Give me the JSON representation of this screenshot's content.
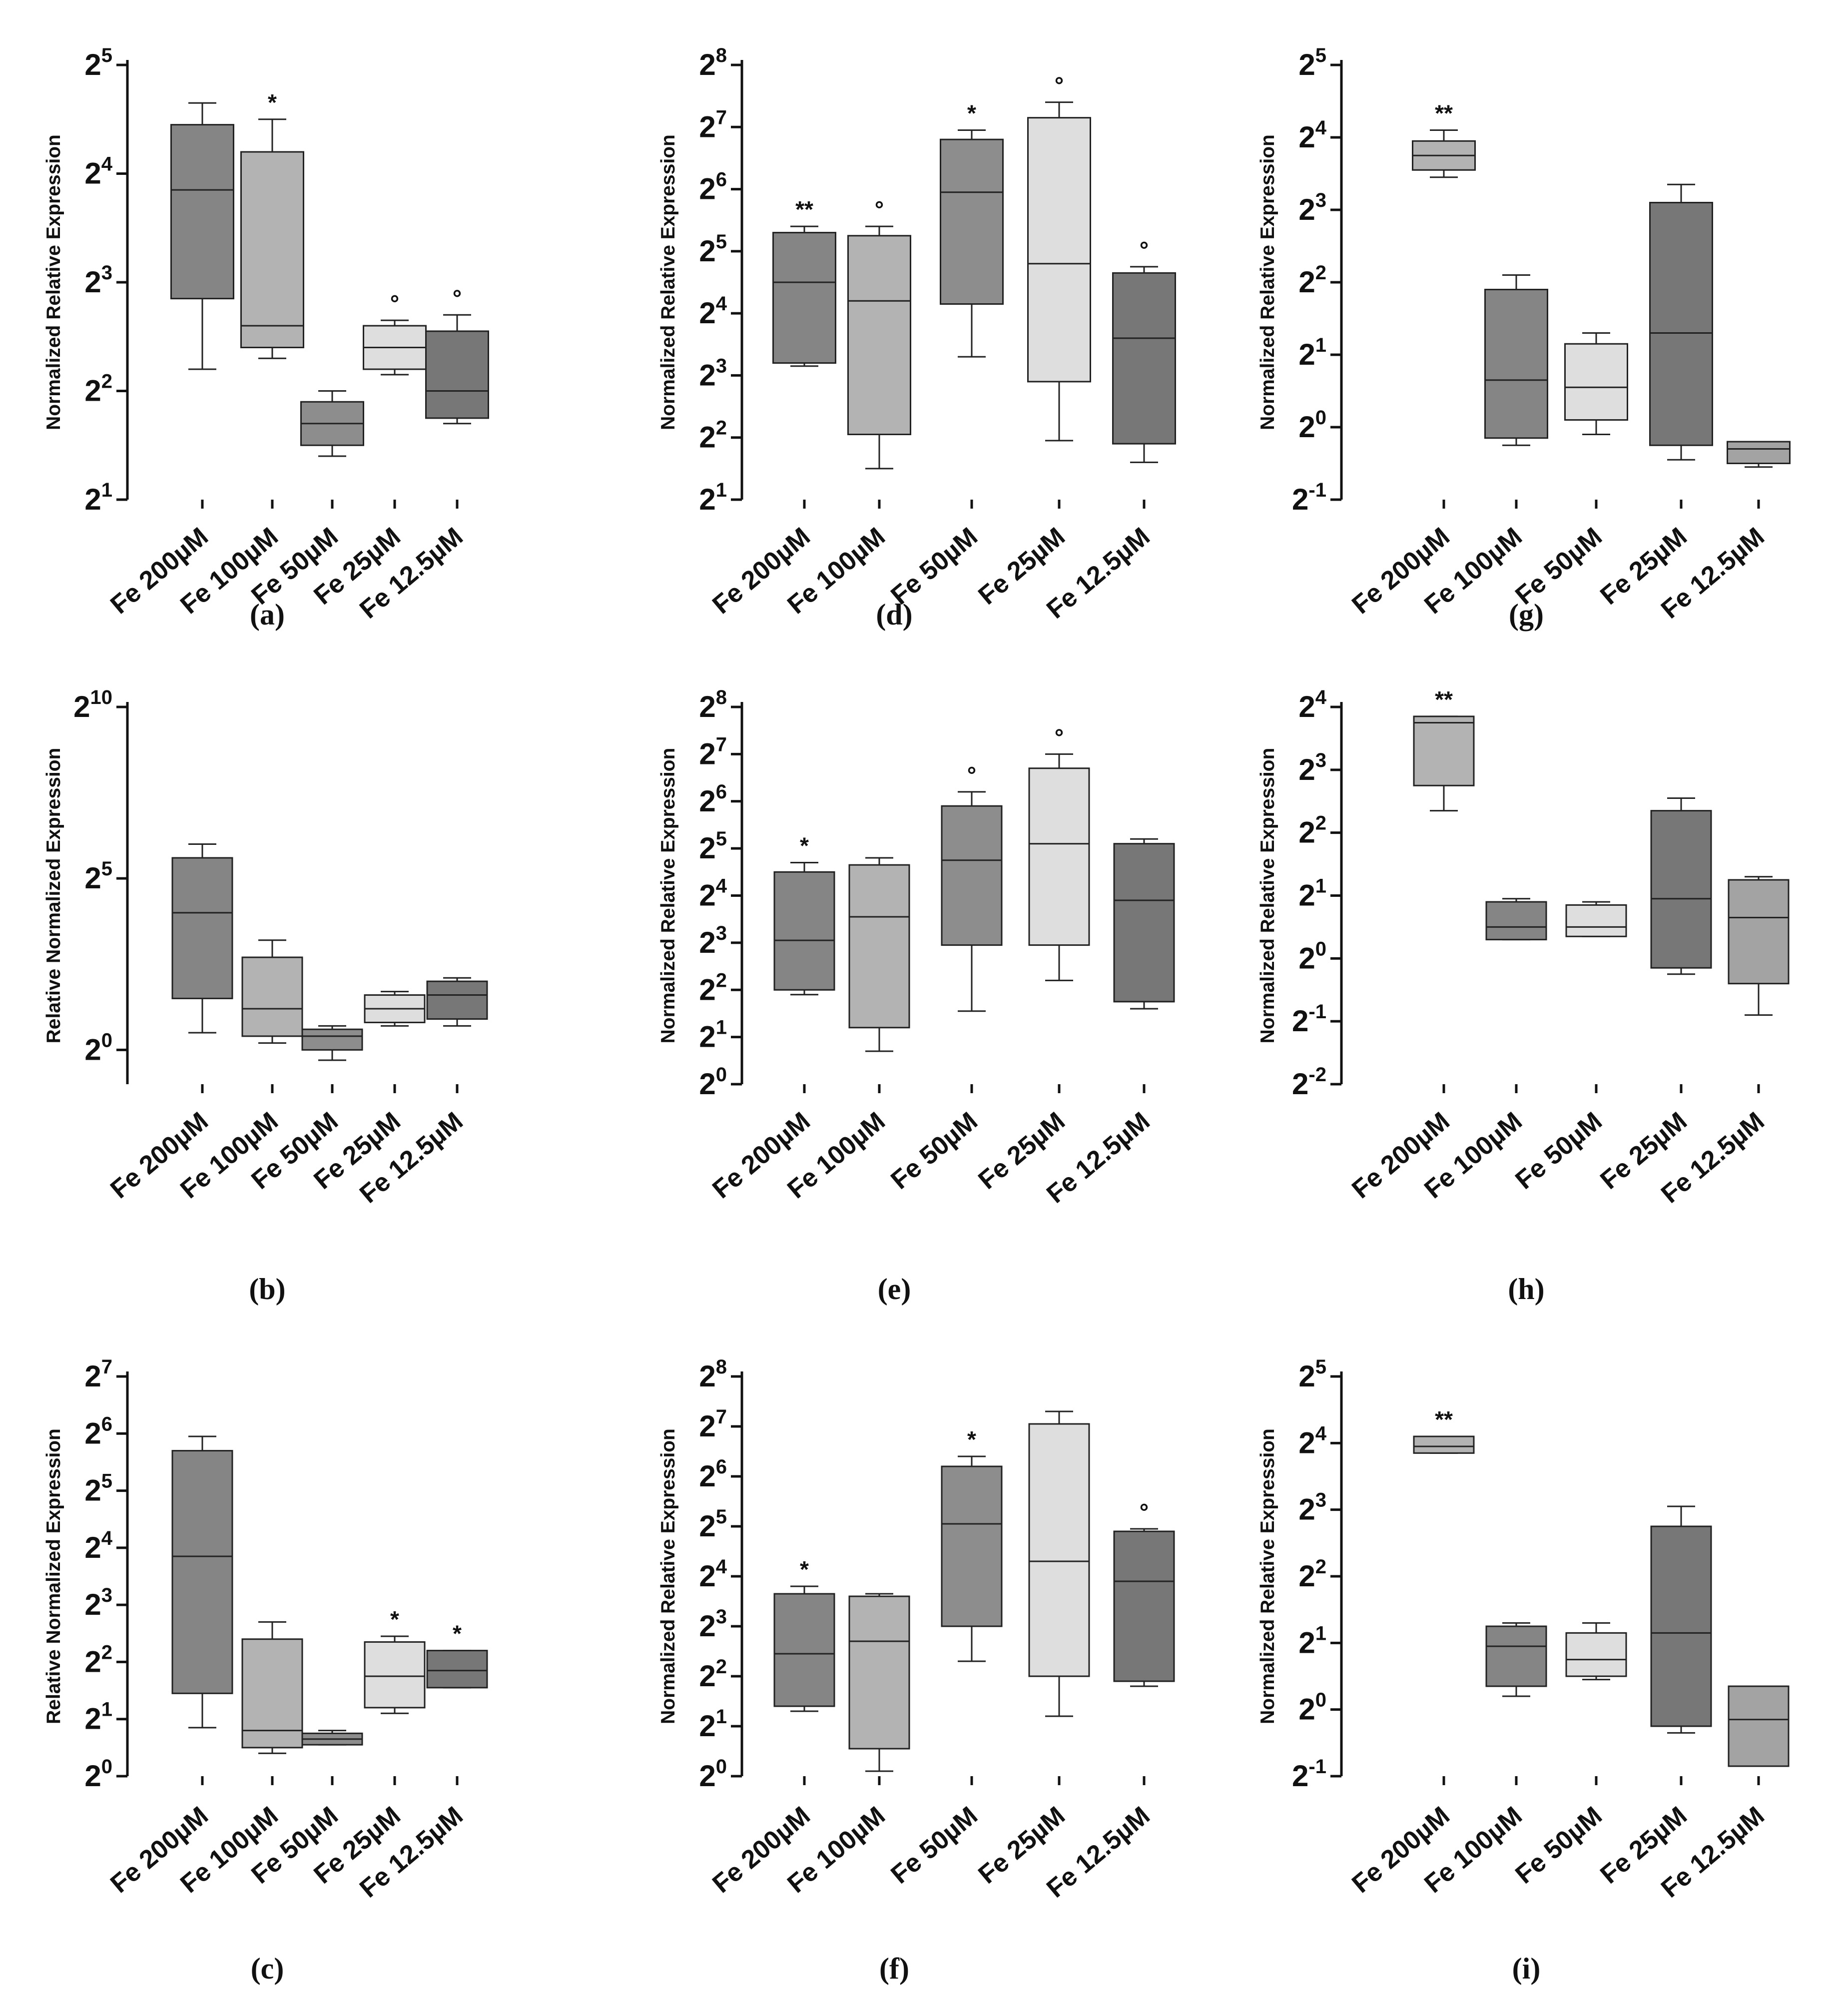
{
  "chart_data": [
    {
      "type": "box",
      "label": "(a)",
      "ylabel": "Normalized Relative Expression",
      "ylim": [
        1,
        5
      ],
      "yticks": [
        1,
        2,
        3,
        4,
        5
      ],
      "categories": [
        "Fe 200µM",
        "Fe 100µM",
        "Fe 50µM",
        "Fe 25µM",
        "Fe 12.5µM"
      ],
      "fills": [
        "#858585",
        "#b3b3b3",
        "#8d8d8d",
        "#dedede",
        "#777777"
      ],
      "boxes": [
        {
          "min": 2.2,
          "q1": 2.85,
          "median": 3.85,
          "q3": 4.45,
          "max": 4.65,
          "sig": ""
        },
        {
          "min": 2.3,
          "q1": 2.4,
          "median": 2.6,
          "q3": 4.2,
          "max": 4.5,
          "sig": "*"
        },
        {
          "min": 1.4,
          "q1": 1.5,
          "median": 1.7,
          "q3": 1.9,
          "max": 2.0,
          "sig": ""
        },
        {
          "min": 2.15,
          "q1": 2.2,
          "median": 2.4,
          "q3": 2.6,
          "max": 2.65,
          "sig": "°"
        },
        {
          "min": 1.7,
          "q1": 1.75,
          "median": 2.0,
          "q3": 2.55,
          "max": 2.7,
          "sig": "°"
        }
      ]
    },
    {
      "type": "box",
      "label": "(d)",
      "ylabel": "Normalized Relative Expression",
      "ylim": [
        1,
        8
      ],
      "yticks": [
        1,
        2,
        3,
        4,
        5,
        6,
        7,
        8
      ],
      "categories": [
        "Fe 200µM",
        "Fe 100µM",
        "Fe 50µM",
        "Fe 25µM",
        "Fe 12.5µM"
      ],
      "fills": [
        "#858585",
        "#b3b3b3",
        "#8d8d8d",
        "#dedede",
        "#777777"
      ],
      "boxes": [
        {
          "min": 3.15,
          "q1": 3.2,
          "median": 4.5,
          "q3": 5.3,
          "max": 5.4,
          "sig": "**"
        },
        {
          "min": 1.5,
          "q1": 2.05,
          "median": 4.2,
          "q3": 5.25,
          "max": 5.4,
          "sig": "°"
        },
        {
          "min": 3.3,
          "q1": 4.15,
          "median": 5.95,
          "q3": 6.8,
          "max": 6.95,
          "sig": "*"
        },
        {
          "min": 1.95,
          "q1": 2.9,
          "median": 4.8,
          "q3": 7.15,
          "max": 7.4,
          "sig": "°"
        },
        {
          "min": 1.6,
          "q1": 1.9,
          "median": 3.6,
          "q3": 4.65,
          "max": 4.75,
          "sig": "°"
        }
      ]
    },
    {
      "type": "box",
      "label": "(g)",
      "ylabel": "Normalized Relative Expression",
      "ylim": [
        -1,
        5
      ],
      "yticks": [
        -1,
        0,
        1,
        2,
        3,
        4,
        5
      ],
      "categories": [
        "Fe 200µM",
        "Fe 100µM",
        "Fe 50µM",
        "Fe 25µM",
        "Fe 12.5µM"
      ],
      "fills": [
        "#b3b3b3",
        "#858585",
        "#dedede",
        "#777777",
        "#a3a3a3"
      ],
      "boxes": [
        {
          "min": 3.45,
          "q1": 3.55,
          "median": 3.75,
          "q3": 3.95,
          "max": 4.1,
          "sig": "**"
        },
        {
          "min": -0.25,
          "q1": -0.15,
          "median": 0.65,
          "q3": 1.9,
          "max": 2.1,
          "sig": ""
        },
        {
          "min": -0.1,
          "q1": 0.1,
          "median": 0.55,
          "q3": 1.15,
          "max": 1.3,
          "sig": ""
        },
        {
          "min": -0.45,
          "q1": -0.25,
          "median": 1.3,
          "q3": 3.1,
          "max": 3.35,
          "sig": ""
        },
        {
          "min": -0.55,
          "q1": -0.5,
          "median": -0.3,
          "q3": -0.2,
          "max": -0.2,
          "sig": ""
        }
      ]
    },
    {
      "type": "box",
      "label": "(b)",
      "ylabel": "Relative Normalized Expression",
      "ylim": [
        -1,
        10
      ],
      "yticks": [
        0,
        5,
        10
      ],
      "categories": [
        "Fe 200µM",
        "Fe 100µM",
        "Fe 50µM",
        "Fe 25µM",
        "Fe 12.5µM"
      ],
      "fills": [
        "#858585",
        "#b3b3b3",
        "#8d8d8d",
        "#dedede",
        "#777777"
      ],
      "boxes": [
        {
          "min": 0.5,
          "q1": 1.5,
          "median": 4.0,
          "q3": 5.6,
          "max": 6.0,
          "sig": ""
        },
        {
          "min": 0.2,
          "q1": 0.4,
          "median": 1.2,
          "q3": 2.7,
          "max": 3.2,
          "sig": ""
        },
        {
          "min": -0.3,
          "q1": 0.0,
          "median": 0.4,
          "q3": 0.6,
          "max": 0.7,
          "sig": ""
        },
        {
          "min": 0.7,
          "q1": 0.8,
          "median": 1.2,
          "q3": 1.6,
          "max": 1.7,
          "sig": ""
        },
        {
          "min": 0.7,
          "q1": 0.9,
          "median": 1.6,
          "q3": 2.0,
          "max": 2.1,
          "sig": ""
        }
      ]
    },
    {
      "type": "box",
      "label": "(e)",
      "ylabel": "Normalized Relative Expression",
      "ylim": [
        0,
        8
      ],
      "yticks": [
        0,
        1,
        2,
        3,
        4,
        5,
        6,
        7,
        8
      ],
      "categories": [
        "Fe 200µM",
        "Fe 100µM",
        "Fe 50µM",
        "Fe 25µM",
        "Fe 12.5µM"
      ],
      "fills": [
        "#858585",
        "#b3b3b3",
        "#8d8d8d",
        "#dedede",
        "#777777"
      ],
      "boxes": [
        {
          "min": 1.9,
          "q1": 2.0,
          "median": 3.05,
          "q3": 4.5,
          "max": 4.7,
          "sig": "*"
        },
        {
          "min": 0.7,
          "q1": 1.2,
          "median": 3.55,
          "q3": 4.65,
          "max": 4.8,
          "sig": ""
        },
        {
          "min": 1.55,
          "q1": 2.95,
          "median": 4.75,
          "q3": 5.9,
          "max": 6.2,
          "sig": "°"
        },
        {
          "min": 2.2,
          "q1": 2.95,
          "median": 5.1,
          "q3": 6.7,
          "max": 7.0,
          "sig": "°"
        },
        {
          "min": 1.6,
          "q1": 1.75,
          "median": 3.9,
          "q3": 5.1,
          "max": 5.2,
          "sig": ""
        }
      ]
    },
    {
      "type": "box",
      "label": "(h)",
      "ylabel": "Normalized Relative Expression",
      "ylim": [
        -2,
        4
      ],
      "yticks": [
        -2,
        -1,
        0,
        1,
        2,
        3,
        4
      ],
      "categories": [
        "Fe 200µM",
        "Fe 100µM",
        "Fe 50µM",
        "Fe 25µM",
        "Fe 12.5µM"
      ],
      "fills": [
        "#b3b3b3",
        "#858585",
        "#dedede",
        "#777777",
        "#a3a3a3"
      ],
      "boxes": [
        {
          "min": 2.35,
          "q1": 2.75,
          "median": 3.75,
          "q3": 3.85,
          "max": 3.85,
          "sig": "**"
        },
        {
          "min": 0.3,
          "q1": 0.3,
          "median": 0.5,
          "q3": 0.9,
          "max": 0.95,
          "sig": ""
        },
        {
          "min": 0.35,
          "q1": 0.35,
          "median": 0.5,
          "q3": 0.85,
          "max": 0.9,
          "sig": ""
        },
        {
          "min": -0.25,
          "q1": -0.15,
          "median": 0.95,
          "q3": 2.35,
          "max": 2.55,
          "sig": ""
        },
        {
          "min": -0.9,
          "q1": -0.4,
          "median": 0.65,
          "q3": 1.25,
          "max": 1.3,
          "sig": ""
        }
      ]
    },
    {
      "type": "box",
      "label": "(c)",
      "ylabel": "Relative Normalized Expression",
      "ylim": [
        0,
        7
      ],
      "yticks": [
        0,
        1,
        2,
        3,
        4,
        5,
        6,
        7
      ],
      "categories": [
        "Fe 200µM",
        "Fe 100µM",
        "Fe 50µM",
        "Fe 25µM",
        "Fe 12.5µM"
      ],
      "fills": [
        "#858585",
        "#b3b3b3",
        "#8d8d8d",
        "#dedede",
        "#777777"
      ],
      "boxes": [
        {
          "min": 0.85,
          "q1": 1.45,
          "median": 3.85,
          "q3": 5.7,
          "max": 5.95,
          "sig": ""
        },
        {
          "min": 0.4,
          "q1": 0.5,
          "median": 0.8,
          "q3": 2.4,
          "max": 2.7,
          "sig": ""
        },
        {
          "min": 0.55,
          "q1": 0.55,
          "median": 0.65,
          "q3": 0.75,
          "max": 0.8,
          "sig": ""
        },
        {
          "min": 1.1,
          "q1": 1.2,
          "median": 1.75,
          "q3": 2.35,
          "max": 2.45,
          "sig": "*"
        },
        {
          "min": 1.55,
          "q1": 1.55,
          "median": 1.85,
          "q3": 2.2,
          "max": 2.2,
          "sig": "*"
        }
      ]
    },
    {
      "type": "box",
      "label": "(f)",
      "ylabel": "Normalized Relative Expression",
      "ylim": [
        0,
        8
      ],
      "yticks": [
        0,
        1,
        2,
        3,
        4,
        5,
        6,
        7,
        8
      ],
      "categories": [
        "Fe 200µM",
        "Fe 100µM",
        "Fe 50µM",
        "Fe 25µM",
        "Fe 12.5µM"
      ],
      "fills": [
        "#858585",
        "#b3b3b3",
        "#8d8d8d",
        "#dedede",
        "#777777"
      ],
      "boxes": [
        {
          "min": 1.3,
          "q1": 1.4,
          "median": 2.45,
          "q3": 3.65,
          "max": 3.8,
          "sig": "*"
        },
        {
          "min": 0.1,
          "q1": 0.55,
          "median": 2.7,
          "q3": 3.6,
          "max": 3.65,
          "sig": ""
        },
        {
          "min": 2.3,
          "q1": 3.0,
          "median": 5.05,
          "q3": 6.2,
          "max": 6.4,
          "sig": "*"
        },
        {
          "min": 1.2,
          "q1": 2.0,
          "median": 4.3,
          "q3": 7.05,
          "max": 7.3,
          "sig": ""
        },
        {
          "min": 1.8,
          "q1": 1.9,
          "median": 3.9,
          "q3": 4.9,
          "max": 4.95,
          "sig": "°"
        }
      ]
    },
    {
      "type": "box",
      "label": "(i)",
      "ylabel": "Normalized Relative Expression",
      "ylim": [
        -1,
        5
      ],
      "yticks": [
        -1,
        0,
        1,
        2,
        3,
        4,
        5
      ],
      "categories": [
        "Fe 200µM",
        "Fe 100µM",
        "Fe 50µM",
        "Fe 25µM",
        "Fe 12.5µM"
      ],
      "fills": [
        "#b3b3b3",
        "#858585",
        "#dedede",
        "#777777",
        "#a3a3a3"
      ],
      "boxes": [
        {
          "min": 3.85,
          "q1": 3.85,
          "median": 3.95,
          "q3": 4.1,
          "max": 4.1,
          "sig": "**"
        },
        {
          "min": 0.2,
          "q1": 0.35,
          "median": 0.95,
          "q3": 1.25,
          "max": 1.3,
          "sig": ""
        },
        {
          "min": 0.45,
          "q1": 0.5,
          "median": 0.75,
          "q3": 1.15,
          "max": 1.3,
          "sig": ""
        },
        {
          "min": -0.35,
          "q1": -0.25,
          "median": 1.15,
          "q3": 2.75,
          "max": 3.05,
          "sig": ""
        },
        {
          "min": -0.85,
          "q1": -0.85,
          "median": -0.15,
          "q3": 0.35,
          "max": 0.35,
          "sig": ""
        }
      ]
    }
  ]
}
